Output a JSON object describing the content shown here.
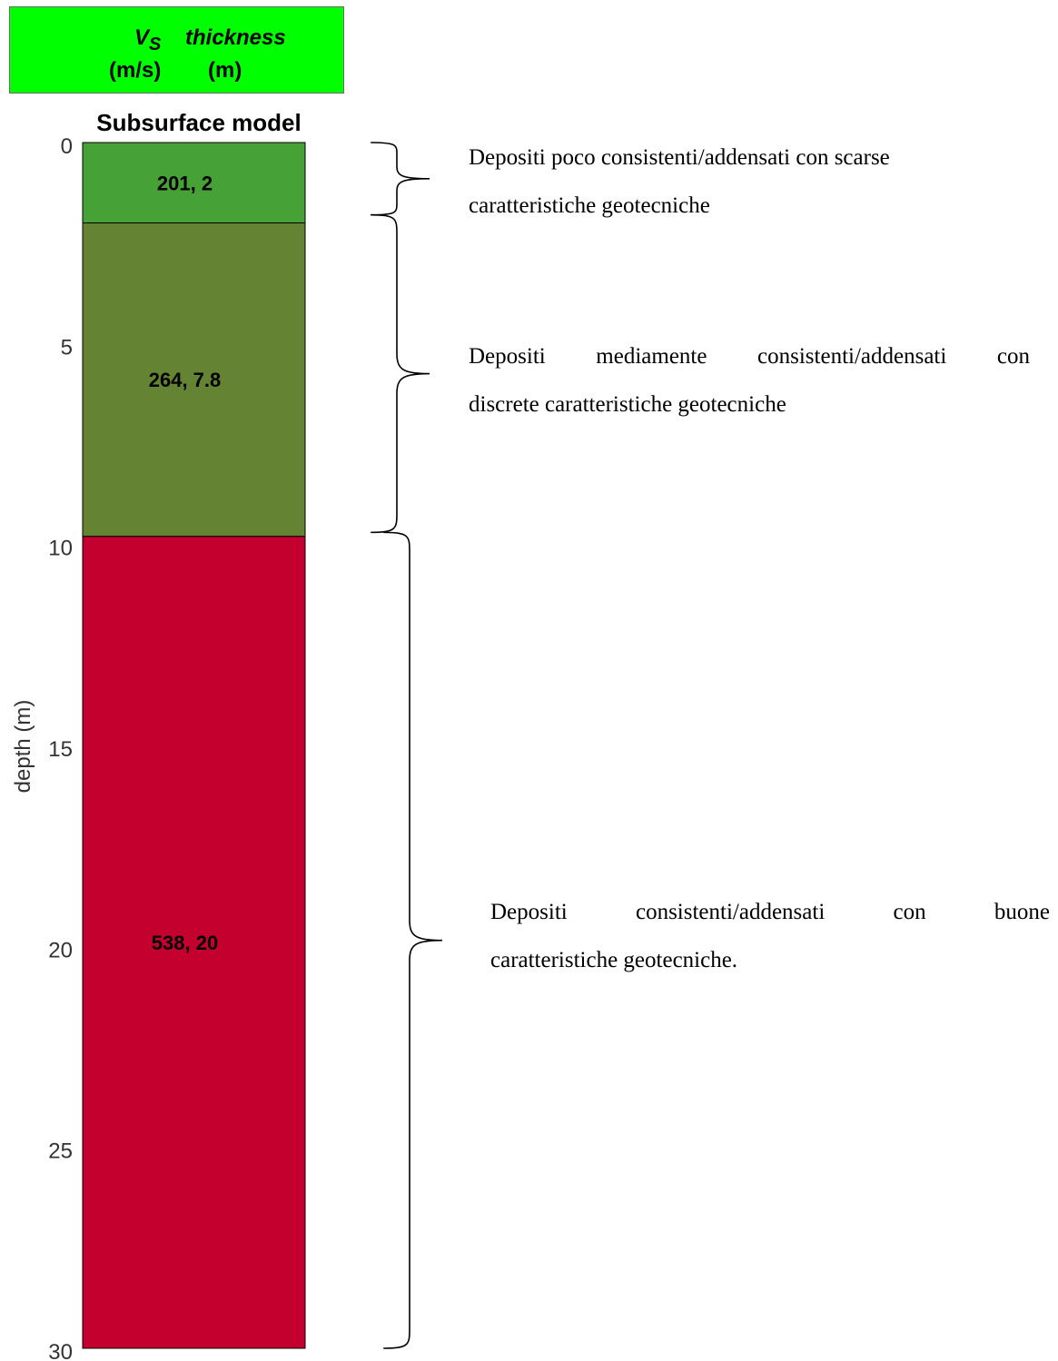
{
  "legend": {
    "vs_symbol": "V",
    "vs_sub": "S",
    "thickness_label": "thickness",
    "vs_unit": "(m/s)",
    "thickness_unit": "(m)",
    "background_color": "#00ff00"
  },
  "chart_data": {
    "type": "bar",
    "title": "Subsurface model",
    "ylabel": "depth (m)",
    "ylim": [
      0,
      30
    ],
    "yticks": [
      "0",
      "5",
      "10",
      "15",
      "20",
      "25",
      "30"
    ],
    "y_inverted": true,
    "layers": [
      {
        "top": 0,
        "bottom": 2,
        "label": "201, 2",
        "color": "#46a136"
      },
      {
        "top": 2,
        "bottom": 9.8,
        "label": "264, 7.8",
        "color": "#648433"
      },
      {
        "top": 9.8,
        "bottom": 30,
        "label": "538, 20",
        "color": "#c4002e"
      }
    ],
    "annotations": [
      {
        "from": 0,
        "to": 1.8,
        "line1": "Depositi poco consistenti/addensati con scarse",
        "line2": "caratteristiche geotecniche"
      },
      {
        "from": 1.8,
        "to": 9.7,
        "line1": "Depositi mediamente consistenti/addensati con",
        "line2": "discrete caratteristiche geotecniche"
      },
      {
        "from": 9.7,
        "to": 30,
        "line1": "Depositi consistenti/addensati con buone",
        "line2": "caratteristiche geotecniche."
      }
    ]
  }
}
